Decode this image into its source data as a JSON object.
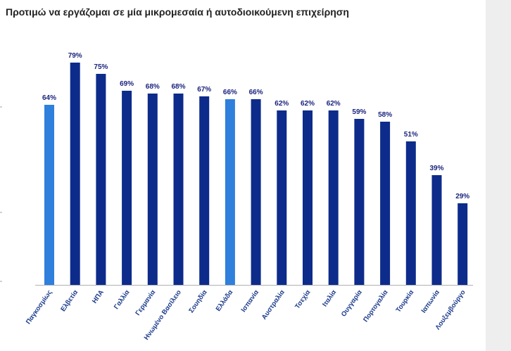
{
  "chart_data": {
    "type": "bar",
    "title": "Προτιμώ να εργάζομαι σε μία μικρομεσαία ή αυτοδιοικούμενη επιχείρηση",
    "xlabel": "",
    "ylabel": "",
    "ylim": [
      0,
      100
    ],
    "value_suffix": "%",
    "categories": [
      "Παγκοσμίως",
      "Ελβετία",
      "ΗΠΑ",
      "Γαλλία",
      "Γερμανία",
      "Ηνωμένο Βασίλειο",
      "Σουηδία",
      "Ελλάδα",
      "Ισπανία",
      "Αυστραλία",
      "Τσεχία",
      "Ιταλία",
      "Ουγγαρία",
      "Πορτογαλία",
      "Τουρκία",
      "Ιαπωνία",
      "Λουξεμβούργο"
    ],
    "values": [
      64,
      79,
      75,
      69,
      68,
      68,
      67,
      66,
      66,
      62,
      62,
      62,
      59,
      58,
      51,
      39,
      29
    ],
    "highlighted": [
      "Παγκοσμίως",
      "Ελλάδα"
    ],
    "colors": {
      "bar": "#0d2b8a",
      "highlight": "#2f7fdc",
      "axis": "#b0b0b0",
      "label": "#1a237e"
    }
  }
}
